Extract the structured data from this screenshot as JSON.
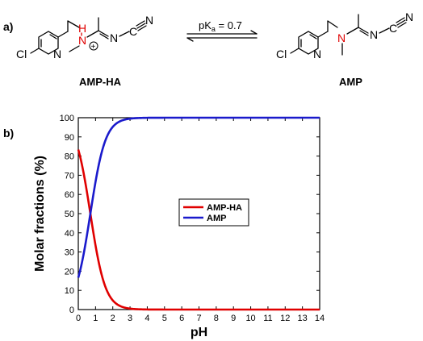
{
  "panels": {
    "a": "a)",
    "b": "b)"
  },
  "scheme": {
    "equilibrium_label": "pK",
    "equilibrium_sub": "a",
    "equilibrium_value": " = 0.7",
    "left_name": "AMP-HA",
    "right_name": "AMP",
    "atoms": {
      "Cl": "Cl",
      "N": "N",
      "C": "C",
      "H": "H",
      "plus": "+"
    }
  },
  "colors": {
    "amp_ha": "#e00000",
    "amp": "#1a1acc",
    "highlight": "#e00000"
  },
  "chart_data": {
    "type": "line",
    "title": "",
    "xlabel": "pH",
    "ylabel": "Molar fractions (%)",
    "xlim": [
      0,
      14
    ],
    "ylim": [
      0,
      100
    ],
    "xticks": [
      0,
      1,
      2,
      3,
      4,
      5,
      6,
      7,
      8,
      9,
      10,
      11,
      12,
      13,
      14
    ],
    "yticks": [
      0,
      10,
      20,
      30,
      40,
      50,
      60,
      70,
      80,
      90,
      100
    ],
    "pKa": 0.7,
    "grid": false,
    "legend_position": "center",
    "x": [
      0,
      0.25,
      0.5,
      0.75,
      1,
      1.25,
      1.5,
      1.75,
      2,
      2.25,
      2.5,
      2.75,
      3,
      3.5,
      4,
      5,
      6,
      7,
      8,
      9,
      10,
      11,
      12,
      13,
      14
    ],
    "series": [
      {
        "name": "AMP-HA",
        "color": "#e00000",
        "values": [
          83.4,
          73.8,
          61.3,
          47.1,
          33.4,
          22.0,
          13.7,
          8.2,
          4.8,
          2.7,
          1.6,
          0.9,
          0.5,
          0.2,
          0.05,
          0,
          0,
          0,
          0,
          0,
          0,
          0,
          0,
          0,
          0
        ]
      },
      {
        "name": "AMP",
        "color": "#1a1acc",
        "values": [
          16.6,
          26.2,
          38.7,
          52.9,
          66.6,
          78.0,
          86.3,
          91.8,
          95.2,
          97.3,
          98.4,
          99.1,
          99.5,
          99.8,
          99.95,
          100,
          100,
          100,
          100,
          100,
          100,
          100,
          100,
          100,
          100
        ]
      }
    ]
  }
}
